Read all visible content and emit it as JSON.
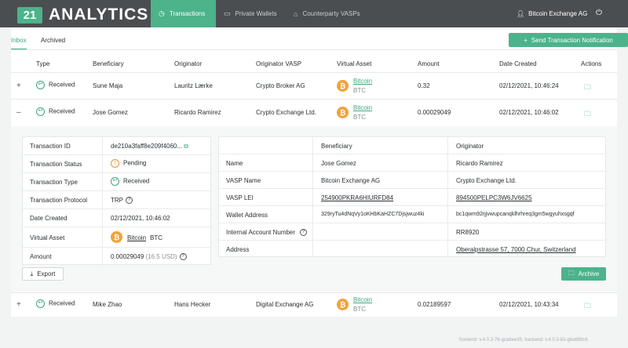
{
  "header": {
    "logo_number": "21",
    "logo_text": "ANALYTICS",
    "nav": [
      {
        "label": "Transactions",
        "icon": "clock-icon",
        "active": true
      },
      {
        "label": "Private Wallets",
        "icon": "wallet-icon",
        "active": false
      },
      {
        "label": "Counterparty VASPs",
        "icon": "bank-icon",
        "active": false
      }
    ],
    "user": "Bitcoin Exchange AG"
  },
  "subtabs": [
    "Inbox",
    "Archived"
  ],
  "send_button": "Send Transaction Notification",
  "table": {
    "columns": [
      "Type",
      "Beneficiary",
      "Originator",
      "Originator VASP",
      "Virtual Asset",
      "Amount",
      "Date Created",
      "Actions"
    ],
    "rows": [
      {
        "expander": "+",
        "type": "Received",
        "beneficiary": "Sune Maja",
        "originator": "Lauritz Lærke",
        "originator_vasp": "Crypto Broker AG",
        "asset": "Bitcoin",
        "asset_code": "BTC",
        "amount": "0.32",
        "date": "02/12/2021, 10:46:24"
      },
      {
        "expander": "–",
        "type": "Received",
        "beneficiary": "Jose Gomez",
        "originator": "Ricardo Ramirez",
        "originator_vasp": "Crypto Exchange Ltd.",
        "asset": "Bitcoin",
        "asset_code": "BTC",
        "amount": "0.00029049",
        "date": "02/12/2021, 10:46:02"
      },
      {
        "expander": "+",
        "type": "Received",
        "beneficiary": "Mike Zhao",
        "originator": "Hans Hecker",
        "originator_vasp": "Digital Exchange AG",
        "asset": "Bitcoin",
        "asset_code": "BTC",
        "amount": "0.02189597",
        "date": "02/12/2021, 10:43:34"
      }
    ]
  },
  "detail": {
    "left": {
      "tx_id_label": "Transaction ID",
      "tx_id": "de210a3faff8e209f4060...",
      "status_label": "Transaction Status",
      "status": "Pending",
      "type_label": "Transaction Type",
      "type": "Received",
      "protocol_label": "Transaction Protocol",
      "protocol": "TRP",
      "date_label": "Date Created",
      "date": "02/12/2021, 10:46:02",
      "asset_label": "Virtual Asset",
      "asset": "Bitcoin",
      "asset_code": "BTC",
      "amount_label": "Amount",
      "amount": "0.00029049",
      "amount_usd": "(16.5 USD)"
    },
    "right": {
      "col_beneficiary": "Beneficiary",
      "col_originator": "Originator",
      "rows": [
        {
          "label": "Name",
          "beneficiary": "Jose Gomez",
          "originator": "Ricardo Ramirez"
        },
        {
          "label": "VASP Name",
          "beneficiary": "Bitcoin Exchange AG",
          "originator": "Crypto Exchange Ltd."
        },
        {
          "label": "VASP LEI",
          "beneficiary": "254900PKRA6HIURFD84",
          "originator": "894500PELPC3W6JV6625"
        },
        {
          "label": "Wallet Address",
          "beneficiary": "329ryTu4dNqVy1oKHbKaHZC7Djsjwuz4ki",
          "originator": "bc1qwm92rjjvwupcanqklhrhreq3gm5wgyuhxsgqf"
        },
        {
          "label": "Internal Account Number",
          "beneficiary": "",
          "originator": "RR8920"
        },
        {
          "label": "Address",
          "beneficiary": "",
          "originator": "Oberalpstrasse 57, 7000 Chur, Switzerland"
        }
      ]
    },
    "export_label": "Export",
    "archive_label": "Archive"
  },
  "version": "frontend: v.4.0.3-76-gca8ee35, backend: v.4.0.3-81-gba689c6"
}
